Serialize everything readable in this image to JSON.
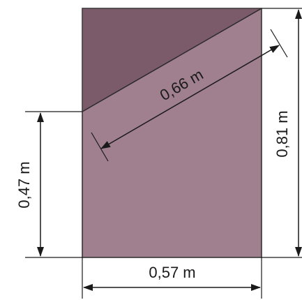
{
  "figure": {
    "colors": {
      "rectangle_fill": "#a0808f",
      "triangle_fill": "#7b5b6a",
      "outline": "#2a2a2a",
      "dimension_line": "#1a1a1a",
      "text": "#1a1a1a"
    },
    "dimensions": {
      "width": "0,57 m",
      "height": "0,81 m",
      "left_segment": "0,47 m",
      "diagonal": "0,66 m"
    }
  }
}
